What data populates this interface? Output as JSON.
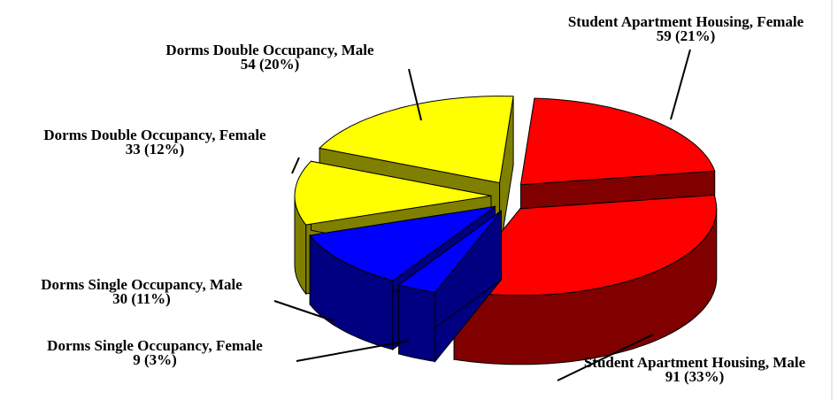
{
  "chart_data": {
    "type": "pie",
    "categories": [
      "Student Apartment Housing, Female",
      "Student Apartment Housing, Male",
      "Dorms Single Occupancy, Female",
      "Dorms Single Occupancy, Male",
      "Dorms Double Occupancy, Female",
      "Dorms Double Occupancy, Male"
    ],
    "values": [
      59,
      91,
      9,
      30,
      33,
      54
    ],
    "value_labels": [
      "59 (21%)",
      "91 (33%)",
      "9 (3%)",
      "30 (11%)",
      "33 (12%)",
      "54 (20%)"
    ],
    "colors": [
      "#ff0000",
      "#ff0000",
      "#0000ff",
      "#0000ff",
      "#ffff00",
      "#ffff00"
    ]
  }
}
